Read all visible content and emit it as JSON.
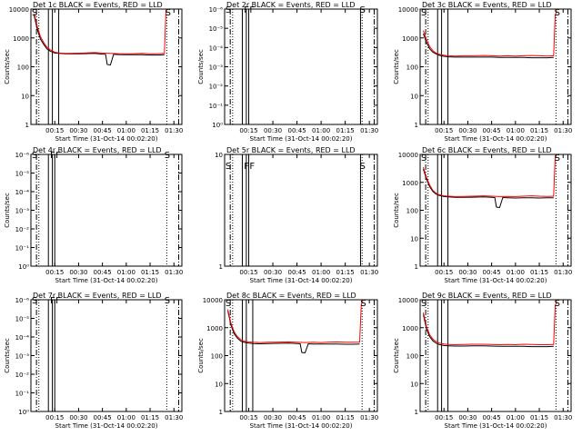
{
  "figure": {
    "background": "#ffffff",
    "event_color": "#000000",
    "lld_color": "#ff0000"
  },
  "chart_data": [
    {
      "panel": "Det 1c",
      "title": "Det 1c  BLACK = Events, RED = LLD",
      "type": "line",
      "yscale": "log",
      "ylim": [
        1,
        10000
      ],
      "ylabel": "Counts/sec",
      "yticks": [
        "1",
        "10",
        "100",
        "1000",
        "10000"
      ],
      "xlabel": "Start Time (31-Oct-14 00:02:20)",
      "xticks": [
        "00:15",
        "00:30",
        "00:45",
        "01:00",
        "01:15",
        "01:30"
      ],
      "xlim_min": [
        0,
        95
      ],
      "has_data": true,
      "series": [
        {
          "color": "#000000",
          "x": [
            2,
            4,
            6,
            8,
            10,
            12,
            15,
            18,
            22,
            27,
            33,
            40,
            45,
            47,
            48,
            50,
            52,
            55,
            60,
            65,
            70,
            75,
            80,
            84
          ],
          "y": [
            6000,
            2000,
            900,
            600,
            420,
            350,
            300,
            290,
            280,
            280,
            285,
            290,
            275,
            270,
            120,
            115,
            270,
            265,
            260,
            260,
            260,
            255,
            255,
            260
          ]
        },
        {
          "color": "#ff0000",
          "x": [
            2,
            4,
            6,
            8,
            10,
            12,
            15,
            18,
            22,
            27,
            33,
            40,
            45,
            50,
            55,
            60,
            65,
            70,
            75,
            80,
            84,
            85,
            86
          ],
          "y": [
            7000,
            2500,
            1100,
            700,
            480,
            390,
            320,
            300,
            290,
            295,
            300,
            310,
            300,
            290,
            285,
            280,
            285,
            290,
            280,
            285,
            290,
            9000,
            10000
          ]
        }
      ],
      "vlines_solid": [
        11,
        13.5,
        17.5
      ],
      "vlines_dotted": [
        5,
        85.5
      ],
      "vlines_dashdot": [
        3.5,
        93
      ],
      "markers": [
        {
          "text": "S",
          "x": 0.5,
          "y": 8000
        },
        {
          "text": "S",
          "x": 84.5,
          "y": 8000
        }
      ]
    },
    {
      "panel": "Det 2r",
      "title": "Det 2r  BLACK = Events, RED = LLD",
      "type": "line",
      "yscale": "log",
      "ylim": [
        1,
        1e-06
      ],
      "ylabel": "Counts/sec",
      "yticks": [
        "10⁰",
        "10⁻¹",
        "10⁻²",
        "10⁻³",
        "10⁻⁴",
        "10⁻⁵",
        "10⁻⁶"
      ],
      "xlabel": "Start Time (31-Oct-14 00:02:20)",
      "xticks": [
        "00:15",
        "00:30",
        "00:45",
        "01:00",
        "01:15",
        "01:30"
      ],
      "xlim_min": [
        0,
        95
      ],
      "has_data": false,
      "series": [],
      "vlines_solid": [
        11,
        13.5,
        15,
        84.5
      ],
      "vlines_dotted": [
        5,
        85.5
      ],
      "vlines_dashdot": [
        3.5,
        93
      ],
      "markers": [
        {
          "text": "S",
          "x": 0.5,
          "y": 1.4
        },
        {
          "text": "F",
          "x": 12,
          "y": 1.4
        },
        {
          "text": "F",
          "x": 15.5,
          "y": 1.4
        },
        {
          "text": "S",
          "x": 84,
          "y": 1.4
        }
      ]
    },
    {
      "panel": "Det 3c",
      "title": "Det 3c  BLACK = Events, RED = LLD",
      "type": "line",
      "yscale": "log",
      "ylim": [
        1,
        10000
      ],
      "ylabel": "Counts/sec",
      "yticks": [
        "1",
        "10",
        "100",
        "1000",
        "10000"
      ],
      "xlabel": "Start Time (31-Oct-14 00:02:20)",
      "xticks": [
        "00:15",
        "00:30",
        "00:45",
        "01:00",
        "01:15",
        "01:30"
      ],
      "xlim_min": [
        0,
        95
      ],
      "has_data": true,
      "series": [
        {
          "color": "#000000",
          "x": [
            2,
            4,
            6,
            8,
            10,
            12,
            15,
            18,
            22,
            27,
            33,
            40,
            45,
            50,
            55,
            60,
            65,
            70,
            75,
            80,
            84
          ],
          "y": [
            1400,
            700,
            420,
            320,
            280,
            250,
            230,
            220,
            215,
            215,
            215,
            215,
            215,
            210,
            210,
            210,
            210,
            205,
            205,
            205,
            210
          ]
        },
        {
          "color": "#ff0000",
          "x": [
            2,
            4,
            6,
            8,
            10,
            12,
            15,
            18,
            22,
            27,
            33,
            40,
            45,
            50,
            55,
            60,
            65,
            70,
            75,
            80,
            84,
            85,
            86
          ],
          "y": [
            1800,
            900,
            500,
            360,
            300,
            270,
            250,
            240,
            235,
            240,
            240,
            245,
            240,
            235,
            240,
            235,
            240,
            245,
            240,
            235,
            240,
            6000,
            9000
          ]
        }
      ],
      "vlines_solid": [
        11,
        13.5,
        17.5
      ],
      "vlines_dotted": [
        5,
        85.5
      ],
      "vlines_dashdot": [
        3.5,
        93
      ],
      "markers": [
        {
          "text": "S",
          "x": 0.5,
          "y": 8000
        },
        {
          "text": "S",
          "x": 84.5,
          "y": 8000
        }
      ]
    },
    {
      "panel": "Det 4r",
      "title": "Det 4r  BLACK = Events, RED = LLD",
      "type": "line",
      "yscale": "log",
      "ylim": [
        1,
        1e-06
      ],
      "ylabel": "Counts/sec",
      "yticks": [
        "10⁰",
        "10⁻¹",
        "10⁻²",
        "10⁻³",
        "10⁻⁴",
        "10⁻⁵",
        "10⁻⁶"
      ],
      "xlabel": "Start Time (31-Oct-14 00:02:20)",
      "xticks": [
        "00:15",
        "00:30",
        "00:45",
        "01:00",
        "01:15",
        "01:30"
      ],
      "xlim_min": [
        0,
        95
      ],
      "has_data": false,
      "series": [],
      "vlines_solid": [
        11,
        13.5,
        15
      ],
      "vlines_dotted": [
        5,
        85.5
      ],
      "vlines_dashdot": [
        3.5,
        93
      ],
      "markers": [
        {
          "text": "S",
          "x": 0.5,
          "y": 1.4
        },
        {
          "text": "F",
          "x": 12,
          "y": 1.4
        },
        {
          "text": "F",
          "x": 15.5,
          "y": 1.4
        },
        {
          "text": "S",
          "x": 84,
          "y": 1.4
        }
      ]
    },
    {
      "panel": "Det 5r",
      "title": "Det 5r  BLACK = Events, RED = LLD",
      "type": "line",
      "yscale": "log",
      "ylim": [
        1,
        10
      ],
      "ylabel": "",
      "yticks": [
        "1",
        "10"
      ],
      "xlabel": "Start Time (31-Oct-14 00:02:20)",
      "xticks": [
        "00:15",
        "00:30",
        "00:45",
        "01:00",
        "01:15",
        "01:30"
      ],
      "xlim_min": [
        0,
        95
      ],
      "has_data": false,
      "series": [],
      "vlines_solid": [
        11,
        13.5,
        15,
        84.5
      ],
      "vlines_dotted": [
        5,
        85.5
      ],
      "vlines_dashdot": [
        3.5,
        93
      ],
      "markers": [
        {
          "text": "S",
          "x": 0.5,
          "y": 8
        },
        {
          "text": "F",
          "x": 12,
          "y": 8
        },
        {
          "text": "F",
          "x": 15.5,
          "y": 8
        },
        {
          "text": "S",
          "x": 84,
          "y": 8
        }
      ]
    },
    {
      "panel": "Det 6c",
      "title": "Det 6c  BLACK = Events, RED = LLD",
      "type": "line",
      "yscale": "log",
      "ylim": [
        1,
        10000
      ],
      "ylabel": "Counts/sec",
      "yticks": [
        "1",
        "10",
        "100",
        "1000",
        "10000"
      ],
      "xlabel": "Start Time (31-Oct-14 00:02:20)",
      "xticks": [
        "00:15",
        "00:30",
        "00:45",
        "01:00",
        "01:15",
        "01:30"
      ],
      "xlim_min": [
        0,
        95
      ],
      "has_data": true,
      "series": [
        {
          "color": "#000000",
          "x": [
            2,
            4,
            6,
            8,
            10,
            12,
            15,
            18,
            22,
            27,
            33,
            40,
            45,
            47,
            48,
            50,
            52,
            55,
            60,
            65,
            70,
            75,
            80,
            84
          ],
          "y": [
            3000,
            1300,
            700,
            470,
            380,
            340,
            310,
            300,
            290,
            290,
            295,
            300,
            290,
            285,
            130,
            125,
            285,
            280,
            275,
            280,
            280,
            275,
            280,
            280
          ]
        },
        {
          "color": "#ff0000",
          "x": [
            2,
            4,
            6,
            8,
            10,
            12,
            15,
            18,
            22,
            27,
            33,
            40,
            45,
            50,
            55,
            60,
            65,
            70,
            75,
            80,
            84,
            85,
            86
          ],
          "y": [
            3500,
            1500,
            800,
            520,
            410,
            360,
            330,
            320,
            310,
            315,
            320,
            330,
            320,
            310,
            315,
            310,
            320,
            330,
            320,
            315,
            320,
            8000,
            10000
          ]
        }
      ],
      "vlines_solid": [
        11,
        13.5,
        17.5
      ],
      "vlines_dotted": [
        5,
        85.5
      ],
      "vlines_dashdot": [
        3.5,
        93
      ],
      "markers": [
        {
          "text": "S",
          "x": 0.5,
          "y": 8000
        },
        {
          "text": "S",
          "x": 84.5,
          "y": 8000
        }
      ]
    },
    {
      "panel": "Det 7r",
      "title": "Det 7r  BLACK = Events, RED = LLD",
      "type": "line",
      "yscale": "log",
      "ylim": [
        1,
        1e-06
      ],
      "ylabel": "Counts/sec",
      "yticks": [
        "10⁰",
        "10⁻¹",
        "10⁻²",
        "10⁻³",
        "10⁻⁴",
        "10⁻⁵",
        "10⁻⁶"
      ],
      "xlabel": "Start Time (31-Oct-14 00:02:20)",
      "xticks": [
        "00:15",
        "00:30",
        "00:45",
        "01:00",
        "01:15",
        "01:30"
      ],
      "xlim_min": [
        0,
        95
      ],
      "has_data": false,
      "series": [],
      "vlines_solid": [
        11,
        13.5,
        15
      ],
      "vlines_dotted": [
        5,
        85.5
      ],
      "vlines_dashdot": [
        3.5,
        93
      ],
      "markers": [
        {
          "text": "S",
          "x": 0.5,
          "y": 1.4
        },
        {
          "text": "F",
          "x": 12,
          "y": 1.4
        },
        {
          "text": "F",
          "x": 15.5,
          "y": 1.4
        },
        {
          "text": "S",
          "x": 84,
          "y": 1.4
        }
      ]
    },
    {
      "panel": "Det 8c",
      "title": "Det 8c  BLACK = Events, RED = LLD",
      "type": "line",
      "yscale": "log",
      "ylim": [
        1,
        10000
      ],
      "ylabel": "Counts/sec",
      "yticks": [
        "1",
        "10",
        "100",
        "1000",
        "10000"
      ],
      "xlabel": "Start Time (31-Oct-14 00:02:20)",
      "xticks": [
        "00:15",
        "00:30",
        "00:45",
        "01:00",
        "01:15",
        "01:30"
      ],
      "xlim_min": [
        0,
        95
      ],
      "has_data": true,
      "series": [
        {
          "color": "#000000",
          "x": [
            2,
            4,
            6,
            8,
            10,
            12,
            15,
            18,
            22,
            27,
            33,
            40,
            45,
            47,
            48,
            50,
            52,
            55,
            60,
            65,
            70,
            75,
            80,
            84
          ],
          "y": [
            4000,
            1200,
            600,
            420,
            330,
            300,
            280,
            270,
            265,
            270,
            275,
            280,
            270,
            265,
            130,
            125,
            265,
            260,
            260,
            260,
            260,
            255,
            255,
            260
          ]
        },
        {
          "color": "#ff0000",
          "x": [
            2,
            4,
            6,
            8,
            10,
            12,
            15,
            18,
            22,
            27,
            33,
            40,
            45,
            50,
            55,
            60,
            65,
            70,
            75,
            80,
            84,
            85,
            86
          ],
          "y": [
            4500,
            1400,
            700,
            480,
            370,
            330,
            310,
            300,
            295,
            300,
            305,
            310,
            300,
            295,
            300,
            295,
            305,
            310,
            300,
            300,
            305,
            7000,
            9000
          ]
        }
      ],
      "vlines_solid": [
        11,
        13.5,
        17.5
      ],
      "vlines_dotted": [
        5,
        85.5
      ],
      "vlines_dashdot": [
        3.5,
        93
      ],
      "markers": [
        {
          "text": "S",
          "x": 0.5,
          "y": 8000
        },
        {
          "text": "S",
          "x": 84.5,
          "y": 8000
        }
      ]
    },
    {
      "panel": "Det 9c",
      "title": "Det 9c  BLACK = Events, RED = LLD",
      "type": "line",
      "yscale": "log",
      "ylim": [
        1,
        10000
      ],
      "ylabel": "Counts/sec",
      "yticks": [
        "1",
        "10",
        "100",
        "1000",
        "10000"
      ],
      "xlabel": "Start Time (31-Oct-14 00:02:20)",
      "xticks": [
        "00:15",
        "00:30",
        "00:45",
        "01:00",
        "01:15",
        "01:30"
      ],
      "xlim_min": [
        0,
        95
      ],
      "has_data": true,
      "series": [
        {
          "color": "#000000",
          "x": [
            2,
            4,
            6,
            8,
            10,
            12,
            15,
            18,
            22,
            27,
            33,
            40,
            45,
            50,
            55,
            60,
            65,
            70,
            75,
            80,
            84
          ],
          "y": [
            3000,
            900,
            480,
            340,
            280,
            250,
            230,
            225,
            220,
            220,
            225,
            225,
            220,
            215,
            215,
            215,
            215,
            210,
            210,
            210,
            215
          ]
        },
        {
          "color": "#ff0000",
          "x": [
            2,
            4,
            6,
            8,
            10,
            12,
            15,
            18,
            22,
            27,
            33,
            40,
            45,
            50,
            55,
            60,
            65,
            70,
            75,
            80,
            84,
            85,
            86
          ],
          "y": [
            3500,
            1100,
            560,
            390,
            320,
            280,
            260,
            250,
            245,
            250,
            255,
            255,
            250,
            245,
            250,
            245,
            255,
            250,
            245,
            245,
            250,
            6000,
            9000
          ]
        }
      ],
      "vlines_solid": [
        11,
        13.5,
        17.5
      ],
      "vlines_dotted": [
        5,
        85.5
      ],
      "vlines_dashdot": [
        3.5,
        93
      ],
      "markers": [
        {
          "text": "S",
          "x": 0.5,
          "y": 8000
        },
        {
          "text": "S",
          "x": 84.5,
          "y": 8000
        }
      ]
    }
  ]
}
